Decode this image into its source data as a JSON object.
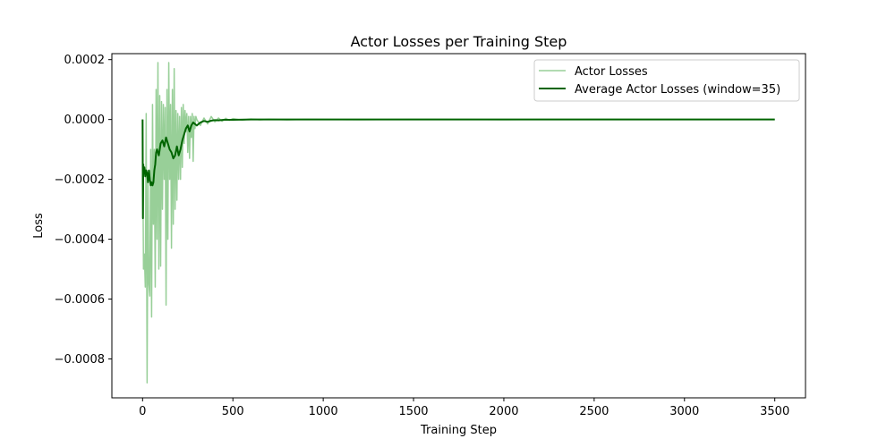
{
  "chart_data": {
    "type": "line",
    "title": "Actor Losses per Training Step",
    "xlabel": "Training Step",
    "ylabel": "Loss",
    "xlim": [
      -170,
      3670
    ],
    "ylim": [
      -0.00093,
      0.00022
    ],
    "xticks": [
      0,
      500,
      1000,
      1500,
      2000,
      2500,
      3000,
      3500
    ],
    "xtick_labels": [
      "0",
      "500",
      "1000",
      "1500",
      "2000",
      "2500",
      "3000",
      "3500"
    ],
    "yticks": [
      0.0002,
      0.0,
      -0.0002,
      -0.0004,
      -0.0006,
      -0.0008
    ],
    "ytick_labels": [
      "0.0002",
      "0.0000",
      "−0.0002",
      "−0.0004",
      "−0.0006",
      "−0.0008"
    ],
    "grid": false,
    "legend_position": "top-right",
    "series": [
      {
        "name": "Actor Losses",
        "color": "#98cf98",
        "style": "thin",
        "x": [
          0,
          5,
          10,
          15,
          20,
          25,
          30,
          35,
          40,
          45,
          50,
          55,
          60,
          65,
          70,
          75,
          80,
          85,
          90,
          95,
          100,
          105,
          110,
          115,
          120,
          125,
          130,
          135,
          140,
          145,
          150,
          155,
          160,
          165,
          170,
          175,
          180,
          185,
          190,
          195,
          200,
          205,
          210,
          215,
          220,
          225,
          230,
          235,
          240,
          245,
          250,
          255,
          260,
          265,
          270,
          275,
          280,
          285,
          290,
          295,
          300,
          320,
          340,
          360,
          380,
          400,
          420,
          440,
          460,
          480,
          500,
          550,
          600,
          650,
          700,
          800,
          900,
          1000,
          1200,
          1400,
          1600,
          1800,
          2000,
          2200,
          2400,
          2600,
          2800,
          3000,
          3200,
          3400,
          3500
        ],
        "y": [
          0,
          -0.0005,
          -0.00045,
          -0.00056,
          2e-05,
          -0.00088,
          -0.0002,
          -0.00055,
          -0.00059,
          -0.0001,
          -0.00066,
          5e-05,
          -0.00035,
          -0.0001,
          -0.00056,
          0.0001,
          -0.0004,
          0.00019,
          -0.0005,
          8e-05,
          -0.00049,
          6e-05,
          -0.0003,
          5e-05,
          -0.0002,
          4e-05,
          -0.00062,
          0.0001,
          -0.0004,
          0.00019,
          -0.0002,
          5e-05,
          -0.00043,
          0.0001,
          -0.00035,
          0.00017,
          -0.0003,
          3e-05,
          -0.00027,
          2e-05,
          -0.0002,
          1e-05,
          -0.0002,
          4e-05,
          -0.00016,
          5e-05,
          -8e-05,
          3e-05,
          -4e-05,
          2e-05,
          -0.00011,
          1e-05,
          -0.00013,
          1e-05,
          -6e-05,
          2e-05,
          -0.00014,
          1e-05,
          -3e-05,
          1e-05,
          0.0,
          -2e-05,
          5e-06,
          -1.5e-05,
          1e-05,
          -8e-06,
          5e-06,
          -6e-06,
          4e-06,
          -3e-06,
          3e-06,
          -2e-06,
          1.5e-06,
          -1e-06,
          1e-06,
          -1e-06,
          5e-07,
          0.0,
          -5e-07,
          0.0,
          5e-07,
          0.0,
          -5e-07,
          0.0,
          0.0,
          5e-07,
          0.0,
          0.0,
          0.0,
          0.0,
          0.0
        ]
      },
      {
        "name": "Average Actor Losses (window=35)",
        "color": "#006400",
        "style": "thick",
        "x": [
          0,
          2,
          4,
          6,
          10,
          15,
          20,
          25,
          30,
          35,
          40,
          45,
          50,
          55,
          60,
          65,
          70,
          75,
          80,
          90,
          100,
          110,
          120,
          130,
          140,
          150,
          160,
          170,
          180,
          190,
          200,
          210,
          220,
          230,
          240,
          250,
          260,
          270,
          280,
          300,
          320,
          340,
          360,
          380,
          400,
          420,
          450,
          500,
          600,
          800,
          1000,
          1500,
          2000,
          2500,
          3000,
          3500
        ],
        "y": [
          0,
          -0.00033,
          -0.00015,
          -0.00018,
          -0.00016,
          -0.00019,
          -0.00017,
          -0.00018,
          -0.00021,
          -0.00017,
          -0.0002,
          -0.00022,
          -0.00021,
          -0.00022,
          -0.00021,
          -0.00017,
          -0.00015,
          -0.00011,
          -0.0001,
          -0.00012,
          -8e-05,
          -7e-05,
          -9e-05,
          -6e-05,
          -8e-05,
          -0.0001,
          -0.00011,
          -0.00013,
          -0.00012,
          -9e-05,
          -0.00012,
          -0.0001,
          -7e-05,
          -5e-05,
          -3e-05,
          -2e-05,
          -4e-05,
          -2e-05,
          -1e-05,
          -2e-05,
          -1e-05,
          -5e-06,
          -8e-06,
          -4e-06,
          -2e-06,
          -3e-06,
          -1e-06,
          -1e-06,
          0.0,
          0.0,
          0.0,
          0.0,
          0.0,
          0.0,
          0.0,
          0.0
        ]
      }
    ]
  }
}
